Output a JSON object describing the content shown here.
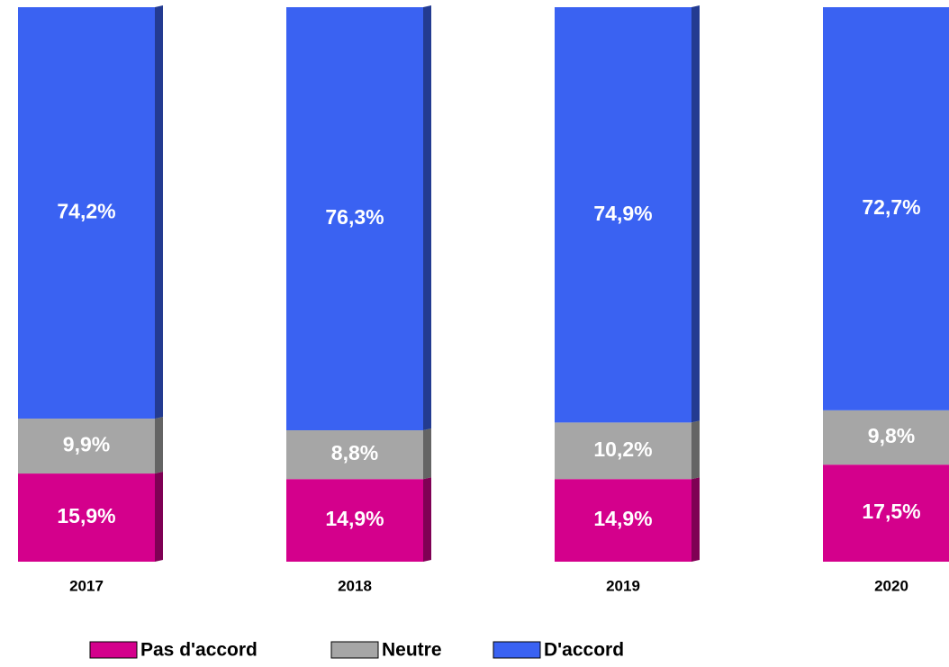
{
  "chart_data": {
    "type": "stacked_bar",
    "categories": [
      "2017",
      "2018",
      "2019",
      "2020"
    ],
    "series": [
      {
        "name": "Pas d'accord",
        "color": "#d4008c",
        "values": [
          15.9,
          14.9,
          14.9,
          17.5
        ],
        "value_labels": [
          "15,9%",
          "14,9%",
          "14,9%",
          "17,5%"
        ]
      },
      {
        "name": "Neutre",
        "color": "#a6a6a6",
        "values": [
          9.9,
          8.8,
          10.2,
          9.8
        ],
        "value_labels": [
          "9,9%",
          "8,8%",
          "10,2%",
          "9,8%"
        ]
      },
      {
        "name": "D'accord",
        "color": "#3a62f2",
        "values": [
          74.2,
          76.3,
          74.9,
          72.7
        ],
        "value_labels": [
          "74,2%",
          "76,3%",
          "74,9%",
          "72,7%"
        ]
      }
    ]
  }
}
